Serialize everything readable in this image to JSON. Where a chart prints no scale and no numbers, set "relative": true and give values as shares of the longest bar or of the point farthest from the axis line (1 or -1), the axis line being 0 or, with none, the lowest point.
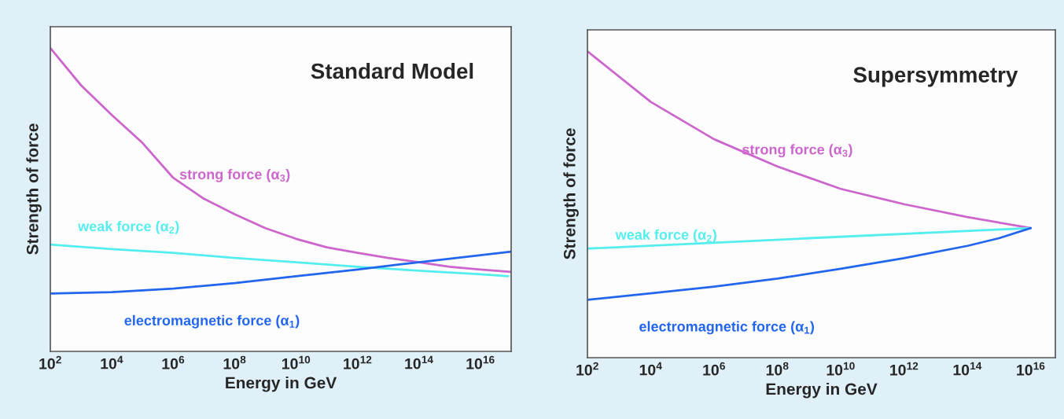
{
  "chart_data": [
    {
      "type": "line",
      "title": "Standard Model",
      "xlabel": "Energy in GeV",
      "ylabel": "Strength of force",
      "relative": true,
      "log": "x",
      "legend": false,
      "grid": false,
      "xlim": [
        100,
        1e+17
      ],
      "xticks": [
        {
          "value": 100,
          "label": "10$^{2}$"
        },
        {
          "value": 10000,
          "label": "10$^{4}$"
        },
        {
          "value": 1000000.0,
          "label": "10$^{6}$"
        },
        {
          "value": 100000000.0,
          "label": "10$^{8}$"
        },
        {
          "value": 10000000000.0,
          "label": "10$^{10}$"
        },
        {
          "value": 1000000000000.0,
          "label": "10$^{12}$"
        },
        {
          "value": 100000000000000.0,
          "label": "10$^{14}$"
        },
        {
          "value": 1e+16,
          "label": "10$^{16}$"
        }
      ],
      "series": [
        {
          "name": "strong force (α$_{3}$)",
          "color": "#cc66cc",
          "x": [
            100.0,
            1000.0,
            10000.0,
            100000.0,
            1000000.0,
            10000000.0,
            100000000.0,
            1000000000.0,
            10000000000.0,
            100000000000.0,
            1000000000000.0,
            10000000000000.0,
            100000000000000.0,
            1000000000000000.0,
            1e+16,
            1e+17
          ],
          "values": [
            1,
            0.877,
            0.779,
            0.687,
            0.572,
            0.503,
            0.452,
            0.406,
            0.371,
            0.343,
            0.325,
            0.308,
            0.294,
            0.279,
            0.27,
            0.262
          ]
        },
        {
          "name": "weak force (α$_{2}$)",
          "color": "#55eeee",
          "x": [
            100.0,
            10000.0,
            1000000.0,
            100000000.0,
            10000000000.0,
            1000000000000.0,
            100000000000000.0,
            1e+16,
            8e+16
          ],
          "values": [
            0.352,
            0.337,
            0.325,
            0.308,
            0.294,
            0.279,
            0.266,
            0.254,
            0.248
          ]
        },
        {
          "name": "electromagnetic force (α$_{1}$)",
          "color": "#2266ee",
          "x": [
            100.0,
            10000.0,
            1000000.0,
            100000000.0,
            10000000000.0,
            1000000000000.0,
            100000000000000.0,
            1e+17
          ],
          "values": [
            0.191,
            0.195,
            0.207,
            0.225,
            0.248,
            0.27,
            0.294,
            0.329
          ]
        }
      ]
    },
    {
      "type": "line",
      "title": "Supersymmetry",
      "xlabel": "Energy in GeV",
      "ylabel": "Strength of force",
      "relative": true,
      "log": "x",
      "legend": false,
      "grid": false,
      "xlim": [
        100,
        6e+16
      ],
      "xticks": [
        {
          "value": 100,
          "label": "10$^{2}$"
        },
        {
          "value": 10000,
          "label": "10$^{4}$"
        },
        {
          "value": 1000000.0,
          "label": "10$^{6}$"
        },
        {
          "value": 100000000.0,
          "label": "10$^{8}$"
        },
        {
          "value": 10000000000.0,
          "label": "10$^{10}$"
        },
        {
          "value": 1000000000000.0,
          "label": "10$^{12}$"
        },
        {
          "value": 100000000000000.0,
          "label": "10$^{14}$"
        },
        {
          "value": 1e+16,
          "label": "10$^{16}$"
        }
      ],
      "series": [
        {
          "name": "strong force (α$_{3}$)",
          "color": "#cc66cc",
          "x": [
            100.0,
            10000.0,
            1000000.0,
            100000000.0,
            10000000000.0,
            1000000000000.0,
            100000000000000.0,
            1e+16
          ],
          "values": [
            1,
            0.835,
            0.713,
            0.624,
            0.551,
            0.501,
            0.459,
            0.423
          ]
        },
        {
          "name": "weak force (α$_{2}$)",
          "color": "#55eeee",
          "x": [
            100.0,
            1000000000.0,
            1e+16
          ],
          "values": [
            0.356,
            0.39,
            0.423
          ]
        },
        {
          "name": "electromagnetic force (α$_{1}$)",
          "color": "#2266ee",
          "x": [
            100.0,
            10000.0,
            1000000.0,
            100000000.0,
            10000000000.0,
            1000000000000.0,
            100000000000000.0,
            1000000000000000.0,
            1e+16
          ],
          "values": [
            0.189,
            0.21,
            0.232,
            0.258,
            0.29,
            0.325,
            0.365,
            0.39,
            0.423
          ]
        }
      ]
    }
  ]
}
